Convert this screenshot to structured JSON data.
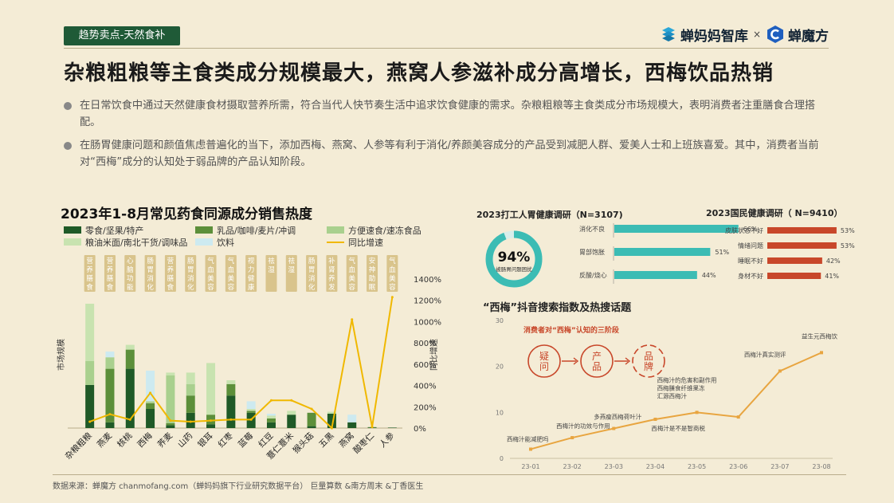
{
  "header": {
    "tag": "趋势卖点-天然食补",
    "brand_left": "蝉妈妈智库",
    "brand_sep": "×",
    "brand_right": "蝉魔方"
  },
  "title": "杂粮粗粮等主食类成分规模最大，燕窝人参滋补成分高增长，西梅饮品热销",
  "bullets": [
    "在日常饮食中通过天然健康食材摄取营养所需，符合当代人快节奏生活中追求饮食健康的需求。杂粮粗粮等主食类成分市场规模大，表明消费者注重膳食合理搭配。",
    "在肠胃健康问题和颜值焦虑普遍化的当下，添加西梅、燕窝、人参等有利于消化/养颜美容成分的产品受到减肥人群、爱美人士和上班族喜爱。其中，消费者当前对“西梅”成分的认知处于弱品牌的产品认知阶段。"
  ],
  "footer": "数据来源：蝉魔方 chanmofang.com（蝉妈妈旗下行业研究数据平台） 巨量算数 &南方周末 &丁香医生",
  "colors": {
    "dark_green": "#1f5a27",
    "mid_green": "#5c8f3a",
    "light_green": "#a9d08e",
    "pale_green": "#c8e3b0",
    "cyan": "#cdeaf0",
    "yellow": "#f0b800",
    "teal": "#3cbcb4",
    "red": "#c8472a",
    "orange": "#e8a540",
    "tag_fill": "#d9c48c"
  },
  "chart_data": [
    {
      "type": "bar",
      "title": "2023年1-8月常见药食同源成分销售热度",
      "ylabel": "市场规模",
      "y2label": "同比增速",
      "legend": [
        "零食/坚果/特产",
        "乳品/咖啡/麦片/冲调",
        "方便速食/速冻食品",
        "粮油米面/南北干货/调味品",
        "饮料",
        "同比增速"
      ],
      "categories": [
        "杂粮粗粮",
        "燕麦",
        "核桃",
        "西梅",
        "荞麦",
        "山药",
        "银耳",
        "红枣",
        "蓝莓",
        "红豆",
        "薏仁薏米",
        "猴头菇",
        "五黑",
        "燕窝",
        "酸枣仁",
        "人参"
      ],
      "tags": [
        "营养膳食",
        "营养膳食",
        "心脑功能",
        "肠胃消化",
        "营养膳食",
        "肠胃消化",
        "气血美容",
        "气血美容",
        "视力健康",
        "祛湿",
        "祛湿",
        "肠胃消化",
        "补肾养发",
        "气血美容",
        "安神助眠",
        "气血美容"
      ],
      "series": [
        {
          "name": "零食/坚果/特产",
          "values": [
            45,
            6,
            62,
            20,
            3,
            16,
            4,
            34,
            16,
            6,
            14,
            2,
            15,
            6,
            0.5,
            0.5
          ]
        },
        {
          "name": "乳品/咖啡/麦片/冲调",
          "values": [
            0,
            56,
            20,
            6,
            2,
            18,
            10,
            12,
            2,
            4,
            0,
            14,
            0,
            0,
            0.5,
            0
          ]
        },
        {
          "name": "方便速食/速冻食品",
          "values": [
            25,
            12,
            0,
            2,
            50,
            12,
            0,
            0,
            0,
            0,
            0,
            0,
            0,
            0,
            0,
            0
          ]
        },
        {
          "name": "粮油米面/南北干货/调味品",
          "values": [
            60,
            0,
            5,
            0,
            3,
            12,
            54,
            4,
            2,
            3,
            4,
            0,
            2,
            0,
            0,
            0
          ]
        },
        {
          "name": "饮料",
          "values": [
            0,
            6,
            0,
            32,
            0,
            0,
            0,
            0,
            8,
            2,
            0,
            0,
            0,
            8,
            0,
            0
          ]
        }
      ],
      "growth": {
        "name": "同比增速",
        "values": [
          60,
          130,
          80,
          330,
          70,
          60,
          70,
          80,
          80,
          260,
          260,
          180,
          0,
          1020,
          10,
          1230
        ]
      },
      "y2_ticks": [
        "0%",
        "200%",
        "400%",
        "600%",
        "800%",
        "1000%",
        "1200%",
        "1400%"
      ],
      "y2lim": [
        0,
        1400
      ]
    },
    {
      "type": "bar",
      "title": "2023打工人胃健康调研（N=3107)",
      "center_value": "94%",
      "center_label": "被肠胃问题困扰",
      "categories": [
        "消化不良",
        "胃部饱胀",
        "反酸/烧心"
      ],
      "values": [
        66,
        51,
        44
      ],
      "value_labels": [
        "66%",
        "51%",
        "44%"
      ]
    },
    {
      "type": "bar",
      "title": "2023国民健康调研（ N=9410）",
      "categories": [
        "皮肤状态不好",
        "情绪问题",
        "睡眠不好",
        "身材不好"
      ],
      "values": [
        53,
        53,
        42,
        41
      ],
      "value_labels": [
        "53%",
        "53%",
        "42%",
        "41%"
      ]
    },
    {
      "type": "line",
      "title": "“西梅”抖音搜索指数及热搜话题",
      "x": [
        "23-01",
        "23-02",
        "23-03",
        "23-04",
        "23-05",
        "23-06",
        "23-07",
        "23-08"
      ],
      "values": [
        2,
        4.5,
        6.5,
        8.5,
        10,
        9,
        19,
        23
      ],
      "yticks": [
        "0",
        "10",
        "20",
        "30"
      ],
      "ylim": [
        0,
        30
      ],
      "annotations": [
        [
          "西梅汁能减肥吗"
        ],
        [
          "西梅汁的功效与作用"
        ],
        [
          "多燕瘦西梅荷叶汁"
        ],
        [
          "西梅汁是不是智商税"
        ],
        [
          "西梅汁的危害和副作用",
          "西梅膳食纤维果冻",
          "汇源西梅汁"
        ],
        [],
        [
          "西梅汁真实测评"
        ],
        [
          "益生元西梅饮"
        ]
      ],
      "stage_title": "消费者对“西梅”认知的三阶段",
      "stages": [
        [
          "疑",
          "问"
        ],
        [
          "产",
          "品"
        ],
        [
          "品",
          "牌"
        ]
      ]
    }
  ]
}
